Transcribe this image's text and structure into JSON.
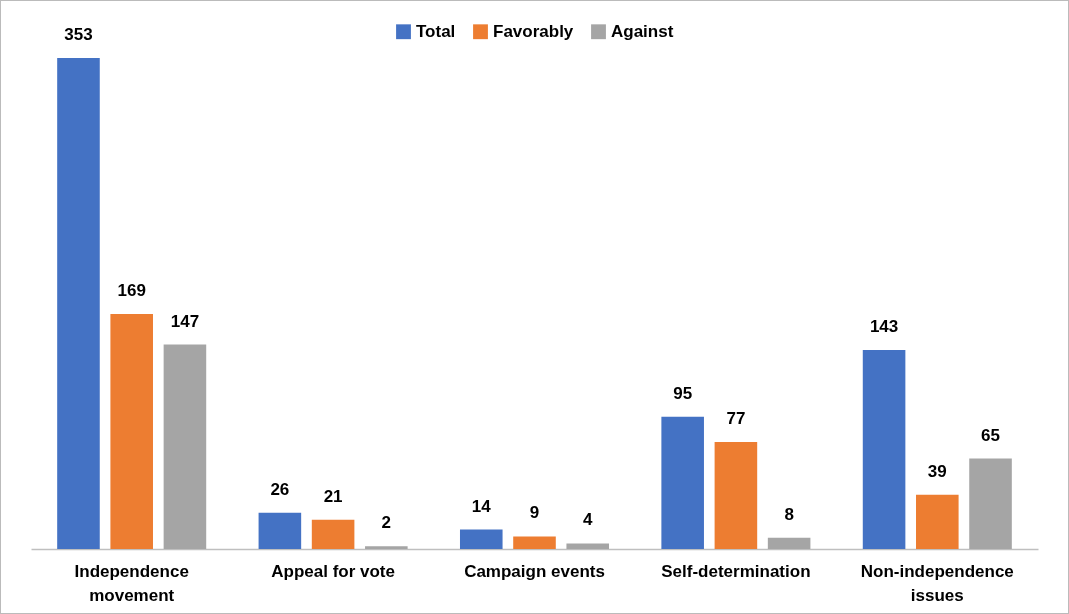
{
  "chart_data": {
    "type": "bar",
    "categories": [
      "Independence movement",
      "Appeal for vote",
      "Campaign events",
      "Self-determination",
      "Non-independence issues"
    ],
    "series": [
      {
        "name": "Total",
        "color": "#4472c4",
        "values": [
          353,
          26,
          14,
          95,
          143
        ]
      },
      {
        "name": "Favorably",
        "color": "#ed7d31",
        "values": [
          169,
          21,
          9,
          77,
          39
        ]
      },
      {
        "name": "Against",
        "color": "#a5a5a5",
        "values": [
          147,
          2,
          4,
          8,
          65
        ]
      }
    ],
    "data_labels": true,
    "legend": "top",
    "grid": false,
    "tick_labels": "x"
  }
}
